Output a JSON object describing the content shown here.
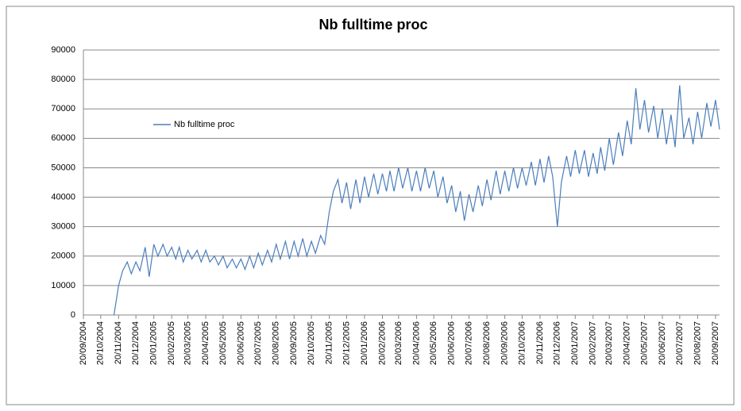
{
  "chart_data": {
    "type": "line",
    "title": "Nb fulltime proc",
    "x": [
      "12/11/2004",
      "20/11/2004",
      "27/11/2004",
      "05/12/2004",
      "12/12/2004",
      "20/12/2004",
      "27/12/2004",
      "05/01/2005",
      "12/01/2005",
      "20/01/2005",
      "27/01/2005",
      "05/02/2005",
      "12/02/2005",
      "20/02/2005",
      "27/02/2005",
      "05/03/2005",
      "12/03/2005",
      "20/03/2005",
      "27/03/2005",
      "05/04/2005",
      "12/04/2005",
      "20/04/2005",
      "27/04/2005",
      "05/05/2005",
      "12/05/2005",
      "20/05/2005",
      "27/05/2005",
      "05/06/2005",
      "12/06/2005",
      "20/06/2005",
      "27/06/2005",
      "05/07/2005",
      "12/07/2005",
      "20/07/2005",
      "27/07/2005",
      "05/08/2005",
      "12/08/2005",
      "20/08/2005",
      "27/08/2005",
      "05/09/2005",
      "12/09/2005",
      "20/09/2005",
      "27/09/2005",
      "05/10/2005",
      "12/10/2005",
      "20/10/2005",
      "27/10/2005",
      "05/11/2005",
      "12/11/2005",
      "20/11/2005",
      "27/11/2005",
      "05/12/2005",
      "12/12/2005",
      "20/12/2005",
      "27/12/2005",
      "05/01/2006",
      "12/01/2006",
      "20/01/2006",
      "27/01/2006",
      "05/02/2006",
      "12/02/2006",
      "20/02/2006",
      "27/02/2006",
      "05/03/2006",
      "12/03/2006",
      "20/03/2006",
      "27/03/2006",
      "05/04/2006",
      "12/04/2006",
      "20/04/2006",
      "27/04/2006",
      "05/05/2006",
      "12/05/2006",
      "20/05/2006",
      "27/05/2006",
      "05/06/2006",
      "12/06/2006",
      "20/06/2006",
      "27/06/2006",
      "05/07/2006",
      "12/07/2006",
      "20/07/2006",
      "27/07/2006",
      "05/08/2006",
      "12/08/2006",
      "20/08/2006",
      "27/08/2006",
      "05/09/2006",
      "12/09/2006",
      "20/09/2006",
      "27/09/2006",
      "05/10/2006",
      "12/10/2006",
      "20/10/2006",
      "27/10/2006",
      "05/11/2006",
      "12/11/2006",
      "20/11/2006",
      "27/11/2006",
      "05/12/2006",
      "12/12/2006",
      "20/12/2006",
      "27/12/2006",
      "05/01/2007",
      "12/01/2007",
      "20/01/2007",
      "27/01/2007",
      "05/02/2007",
      "12/02/2007",
      "20/02/2007",
      "27/02/2007",
      "05/03/2007",
      "12/03/2007",
      "20/03/2007",
      "27/03/2007",
      "05/04/2007",
      "12/04/2007",
      "20/04/2007",
      "27/04/2007",
      "05/05/2007",
      "12/05/2007",
      "20/05/2007",
      "27/05/2007",
      "05/06/2007",
      "12/06/2007",
      "20/06/2007",
      "27/06/2007",
      "05/07/2007",
      "12/07/2007",
      "20/07/2007",
      "27/07/2007",
      "05/08/2007",
      "12/08/2007",
      "20/08/2007",
      "27/08/2007",
      "05/09/2007",
      "12/09/2007",
      "20/09/2007",
      "27/09/2007"
    ],
    "series": [
      {
        "name": "Nb fulltime proc",
        "color": "#4a7ebb",
        "values": [
          0,
          10000,
          15000,
          18000,
          14000,
          18000,
          15000,
          23000,
          13000,
          24000,
          20000,
          24000,
          20000,
          23000,
          19000,
          23000,
          18000,
          22000,
          19000,
          22000,
          18000,
          22000,
          18000,
          20000,
          17000,
          20000,
          16000,
          19000,
          16000,
          19000,
          15500,
          20000,
          16000,
          21000,
          17000,
          22000,
          18000,
          24000,
          19000,
          25000,
          19000,
          25000,
          20000,
          26000,
          20000,
          25000,
          21000,
          27000,
          24000,
          35000,
          42000,
          46000,
          38000,
          45000,
          36000,
          46000,
          38000,
          47000,
          40000,
          48000,
          41000,
          48000,
          42000,
          49000,
          42000,
          50000,
          43000,
          50000,
          42000,
          49000,
          42000,
          50000,
          43000,
          49000,
          40000,
          47000,
          38000,
          44000,
          35000,
          42000,
          32000,
          41000,
          35000,
          44000,
          37000,
          46000,
          39000,
          49000,
          41000,
          49000,
          42000,
          50000,
          43000,
          50000,
          44000,
          52000,
          44000,
          53000,
          45000,
          54000,
          47000,
          30000,
          45000,
          54000,
          47000,
          56000,
          48000,
          56000,
          47000,
          55000,
          48000,
          57000,
          49000,
          60000,
          51000,
          62000,
          54000,
          66000,
          58000,
          77000,
          63000,
          73000,
          62000,
          71000,
          60000,
          70000,
          58000,
          68000,
          57000,
          78000,
          60000,
          67000,
          58000,
          69000,
          60000,
          72000,
          64000,
          73000,
          63000
        ]
      }
    ],
    "xlim": [
      "20/09/2004",
      "27/09/2007"
    ],
    "xticks": [
      "20/09/2004",
      "20/10/2004",
      "20/11/2004",
      "20/12/2004",
      "20/01/2005",
      "20/02/2005",
      "20/03/2005",
      "20/04/2005",
      "20/05/2005",
      "20/06/2005",
      "20/07/2005",
      "20/08/2005",
      "20/09/2005",
      "20/10/2005",
      "20/11/2005",
      "20/12/2005",
      "20/01/2006",
      "20/02/2006",
      "20/03/2006",
      "20/04/2006",
      "20/05/2006",
      "20/06/2006",
      "20/07/2006",
      "20/08/2006",
      "20/09/2006",
      "20/10/2006",
      "20/11/2006",
      "20/12/2006",
      "20/01/2007",
      "20/02/2007",
      "20/03/2007",
      "20/04/2007",
      "20/05/2007",
      "20/06/2007",
      "20/07/2007",
      "20/08/2007",
      "20/09/2007"
    ],
    "ylim": [
      0,
      90000
    ],
    "yticks": [
      0,
      10000,
      20000,
      30000,
      40000,
      50000,
      60000,
      70000,
      80000,
      90000
    ],
    "grid": true,
    "legend": "top-left"
  }
}
